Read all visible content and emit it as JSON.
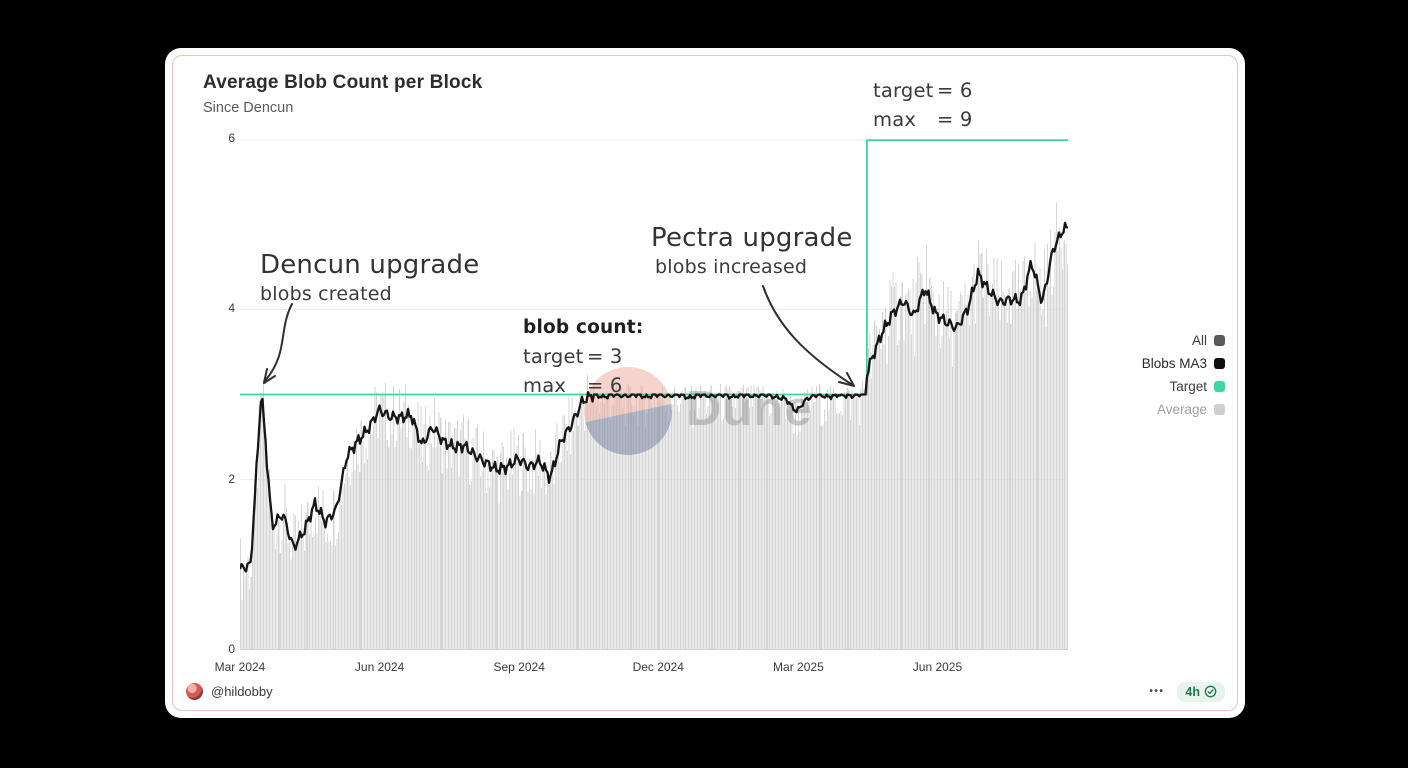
{
  "header": {
    "title": "Average Blob Count per Block",
    "subtitle": "Since Dencun"
  },
  "watermark": {
    "text": "Dune"
  },
  "annotations": {
    "post_pectra_params": {
      "rows": [
        {
          "k": "target",
          "v": "= 6"
        },
        {
          "k": "max",
          "v": "= 9"
        }
      ]
    },
    "dencun": {
      "title": "Dencun upgrade",
      "subtitle": "blobs created"
    },
    "pectra": {
      "title": "Pectra upgrade",
      "subtitle": "blobs increased"
    },
    "blob_count": {
      "title": "blob count:",
      "rows": [
        {
          "k": "target",
          "v": "= 3"
        },
        {
          "k": "max",
          "v": "= 6"
        }
      ]
    }
  },
  "legend": {
    "items": [
      {
        "label": "All",
        "swatch": "#5a5a5a",
        "text_color": "#3f3f3f"
      },
      {
        "label": "Blobs MA3",
        "swatch": "#0f0f0f",
        "text_color": "#2b2b2b"
      },
      {
        "label": "Target",
        "swatch": "#3fd79e",
        "text_color": "#3f3f3f"
      },
      {
        "label": "Average",
        "swatch": "#cfcfcf",
        "text_color": "#9f9f9f"
      }
    ]
  },
  "footer": {
    "author": "@hildobby",
    "menu": "•••",
    "badge": {
      "age": "4h"
    }
  },
  "theme": {
    "card_border": "#f2c2b0",
    "target_green": "#3fd79e",
    "badge_bg": "#e7f3ec",
    "badge_text": "#1b7a4e",
    "bar_fill": "#d5d5d5",
    "line_black": "#161616",
    "grid": "#ececec",
    "baseline": "#d8d8d8"
  },
  "chart_data": {
    "type": "line",
    "title": "Average Blob Count per Block",
    "subtitle": "Since Dencun",
    "x_unit": "weeks since Dencun (2024-03-13)",
    "total_weeks": 77.4,
    "ylim": [
      0,
      6
    ],
    "yticks": [
      0,
      2,
      4,
      6
    ],
    "grid": "horizontal",
    "legend_position": "right",
    "xticks": [
      {
        "label": "Mar 2024",
        "week": 0
      },
      {
        "label": "Jun 2024",
        "week": 13.05
      },
      {
        "label": "Sep 2024",
        "week": 26.1
      },
      {
        "label": "Dec 2024",
        "week": 39.1
      },
      {
        "label": "Mar 2025",
        "week": 52.2
      },
      {
        "label": "Jun 2025",
        "week": 65.2
      }
    ],
    "series": [
      {
        "name": "Blobs MA3",
        "type": "line",
        "color": "#161616",
        "weekly_values": [
          0.95,
          1.0,
          3.05,
          1.45,
          1.6,
          1.2,
          1.4,
          1.72,
          1.5,
          1.65,
          2.28,
          2.45,
          2.6,
          2.82,
          2.74,
          2.73,
          2.76,
          2.4,
          2.62,
          2.45,
          2.38,
          2.4,
          2.28,
          2.2,
          2.12,
          2.15,
          2.25,
          2.15,
          2.22,
          2.02,
          2.45,
          2.65,
          2.92,
          3.0,
          2.97,
          3.0,
          2.98,
          3.0,
          2.97,
          3.0,
          2.98,
          3.0,
          2.96,
          3.0,
          2.98,
          3.0,
          2.97,
          3.0,
          2.98,
          3.0,
          2.97,
          2.95,
          2.8,
          2.95,
          3.0,
          2.97,
          3.0,
          2.98,
          3.0,
          3.4,
          3.72,
          3.95,
          4.1,
          3.92,
          4.25,
          3.95,
          3.85,
          3.78,
          4.0,
          4.42,
          4.22,
          4.08,
          4.12,
          4.1,
          4.55,
          4.08,
          4.7,
          4.95
        ]
      },
      {
        "name": "Average",
        "type": "bar",
        "color": "#d5d5d5",
        "note": "one bar per day, tracks MA3 with noise ±0.2 to ±0.5",
        "jitter_pre": 0.42,
        "jitter_flat": 0.2,
        "jitter_post": 0.5
      },
      {
        "name": "Target",
        "type": "step-line",
        "color": "#3fd79e",
        "value_before_pectra": 3,
        "value_after_pectra": 6,
        "step_week": 58.6,
        "blob_max_before": 6,
        "blob_max_after": 9
      }
    ]
  }
}
